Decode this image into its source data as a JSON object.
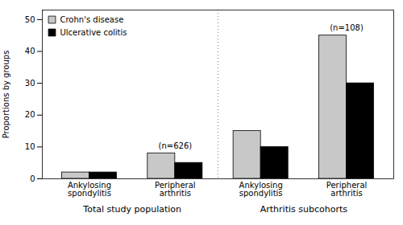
{
  "chart_data": {
    "type": "bar",
    "categories": [
      "Ankylosing\nspondylitis",
      "Peripheral\narthritis",
      "Ankylosing\nspondylitis",
      "Peripheral\narthritis"
    ],
    "series": [
      {
        "name": "Crohn's disease",
        "color": "#c8c8c8",
        "values": [
          2,
          8,
          15,
          45
        ]
      },
      {
        "name": "Ulcerative colitis",
        "color": "#000000",
        "values": [
          2,
          5,
          10,
          30
        ]
      }
    ],
    "ylabel": "Proportions by groups",
    "ylim": [
      0,
      53
    ],
    "yticks": [
      0,
      10,
      20,
      30,
      40,
      50
    ],
    "legend": "upper left",
    "grid": false,
    "annotations": [
      {
        "text": "(n=626)",
        "x": 1,
        "y": 9
      },
      {
        "text": "(n=108)",
        "x": 3,
        "y": 46
      }
    ],
    "sections": [
      {
        "text": "Total study population",
        "start": 0,
        "end": 1
      },
      {
        "text": "Arthritis subcohorts",
        "start": 2,
        "end": 3
      }
    ]
  }
}
